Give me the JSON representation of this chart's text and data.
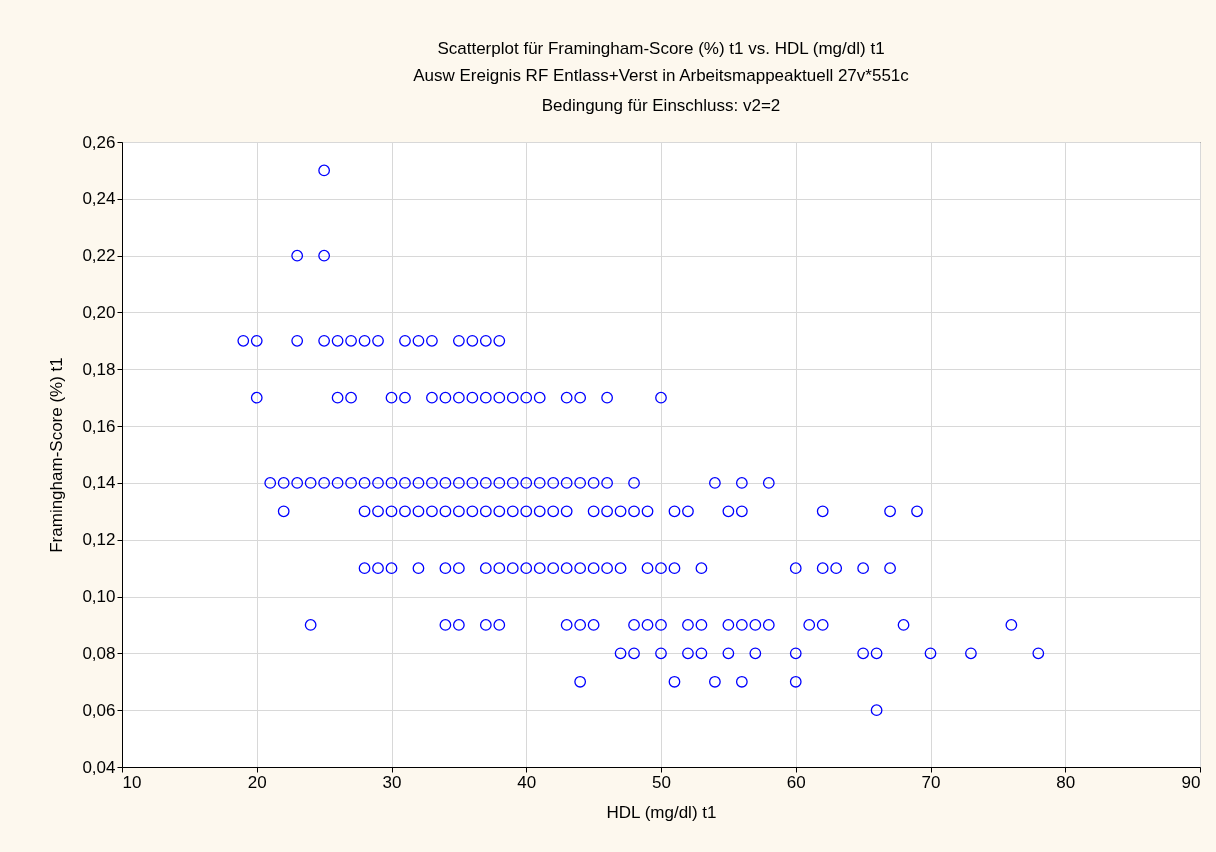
{
  "chart_data": {
    "type": "scatter",
    "title": "Scatterplot für Framingham-Score (%) t1 vs. HDL (mg/dl) t1",
    "subtitle": "Ausw Ereignis RF Entlass+Verst in Arbeitsmappeaktuell 27v*551c\nBedingung für Einschluss: v2=2",
    "xlabel": "HDL (mg/dl) t1",
    "ylabel": "Framingham-Score (%) t1",
    "marker": "circle",
    "grid": true,
    "xlim": [
      10,
      90
    ],
    "xticks": [
      10,
      20,
      30,
      40,
      50,
      60,
      70,
      80,
      90
    ],
    "ylim": [
      0.04,
      0.26
    ],
    "yticks": [
      {
        "value": 0.04,
        "label": "0,04"
      },
      {
        "value": 0.06,
        "label": "0,06"
      },
      {
        "value": 0.08,
        "label": "0,08"
      },
      {
        "value": 0.1,
        "label": "0,10"
      },
      {
        "value": 0.12,
        "label": "0,12"
      },
      {
        "value": 0.14,
        "label": "0,14"
      },
      {
        "value": 0.16,
        "label": "0,16"
      },
      {
        "value": 0.18,
        "label": "0,18"
      },
      {
        "value": 0.2,
        "label": "0,20"
      },
      {
        "value": 0.22,
        "label": "0,22"
      },
      {
        "value": 0.24,
        "label": "0,24"
      },
      {
        "value": 0.26,
        "label": "0,26"
      }
    ],
    "series": [
      {
        "color": "#0000ff",
        "x": [
          25,
          23,
          25,
          19,
          20,
          23,
          25,
          26,
          27,
          28,
          29,
          31,
          32,
          33,
          35,
          36,
          37,
          38,
          20,
          26,
          27,
          30,
          31,
          33,
          34,
          35,
          36,
          37,
          38,
          39,
          40,
          41,
          43,
          44,
          46,
          50,
          21,
          22,
          23,
          24,
          25,
          26,
          27,
          28,
          29,
          30,
          31,
          32,
          33,
          34,
          35,
          36,
          37,
          38,
          39,
          40,
          41,
          42,
          43,
          44,
          45,
          46,
          48,
          54,
          56,
          58,
          22,
          28,
          29,
          30,
          31,
          32,
          33,
          34,
          35,
          36,
          37,
          38,
          39,
          40,
          41,
          42,
          43,
          45,
          46,
          47,
          48,
          49,
          51,
          52,
          55,
          56,
          62,
          67,
          69,
          28,
          29,
          30,
          32,
          34,
          35,
          37,
          38,
          39,
          40,
          41,
          42,
          43,
          44,
          45,
          46,
          47,
          49,
          50,
          51,
          53,
          60,
          62,
          63,
          65,
          67,
          24,
          34,
          35,
          37,
          38,
          43,
          44,
          45,
          48,
          49,
          50,
          52,
          53,
          55,
          56,
          57,
          58,
          61,
          62,
          68,
          76,
          47,
          48,
          50,
          52,
          53,
          55,
          57,
          60,
          65,
          66,
          70,
          73,
          78,
          44,
          51,
          54,
          56,
          60,
          66
        ],
        "values": [
          0.25,
          0.22,
          0.22,
          0.19,
          0.19,
          0.19,
          0.19,
          0.19,
          0.19,
          0.19,
          0.19,
          0.19,
          0.19,
          0.19,
          0.19,
          0.19,
          0.19,
          0.19,
          0.17,
          0.17,
          0.17,
          0.17,
          0.17,
          0.17,
          0.17,
          0.17,
          0.17,
          0.17,
          0.17,
          0.17,
          0.17,
          0.17,
          0.17,
          0.17,
          0.17,
          0.17,
          0.14,
          0.14,
          0.14,
          0.14,
          0.14,
          0.14,
          0.14,
          0.14,
          0.14,
          0.14,
          0.14,
          0.14,
          0.14,
          0.14,
          0.14,
          0.14,
          0.14,
          0.14,
          0.14,
          0.14,
          0.14,
          0.14,
          0.14,
          0.14,
          0.14,
          0.14,
          0.14,
          0.14,
          0.14,
          0.14,
          0.13,
          0.13,
          0.13,
          0.13,
          0.13,
          0.13,
          0.13,
          0.13,
          0.13,
          0.13,
          0.13,
          0.13,
          0.13,
          0.13,
          0.13,
          0.13,
          0.13,
          0.13,
          0.13,
          0.13,
          0.13,
          0.13,
          0.13,
          0.13,
          0.13,
          0.13,
          0.13,
          0.13,
          0.13,
          0.11,
          0.11,
          0.11,
          0.11,
          0.11,
          0.11,
          0.11,
          0.11,
          0.11,
          0.11,
          0.11,
          0.11,
          0.11,
          0.11,
          0.11,
          0.11,
          0.11,
          0.11,
          0.11,
          0.11,
          0.11,
          0.11,
          0.11,
          0.11,
          0.11,
          0.11,
          0.09,
          0.09,
          0.09,
          0.09,
          0.09,
          0.09,
          0.09,
          0.09,
          0.09,
          0.09,
          0.09,
          0.09,
          0.09,
          0.09,
          0.09,
          0.09,
          0.09,
          0.09,
          0.09,
          0.09,
          0.09,
          0.08,
          0.08,
          0.08,
          0.08,
          0.08,
          0.08,
          0.08,
          0.08,
          0.08,
          0.08,
          0.08,
          0.08,
          0.08,
          0.07,
          0.07,
          0.07,
          0.07,
          0.07,
          0.06
        ]
      }
    ]
  }
}
